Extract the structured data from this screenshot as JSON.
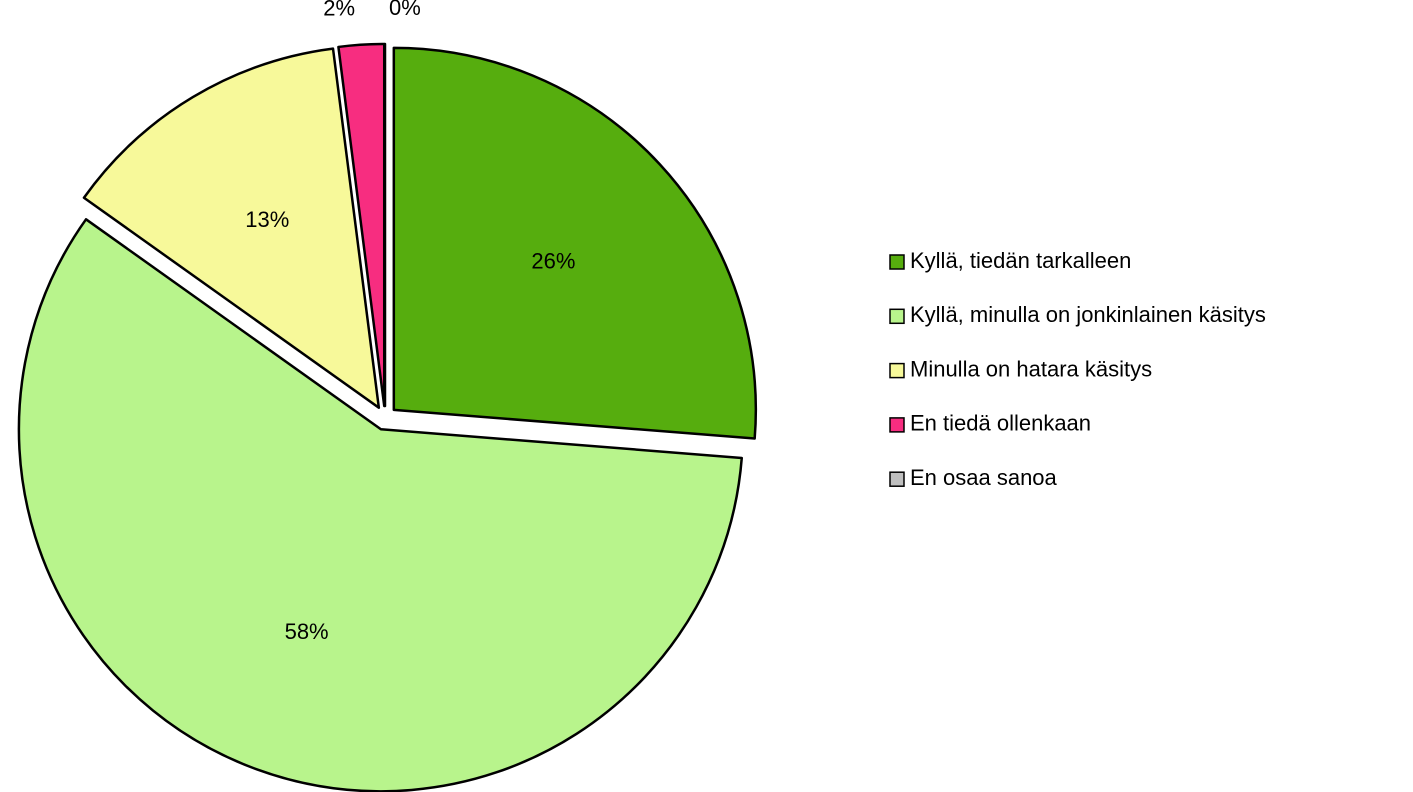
{
  "chart_data": {
    "type": "pie",
    "categories": [
      "Kyllä, tiedän tarkalleen",
      "Kyllä, minulla on jonkinlainen käsitys",
      "Minulla on hatara käsitys",
      "En tiedä ollenkaan",
      "En osaa sanoa"
    ],
    "values": [
      26,
      58,
      13,
      2,
      0
    ],
    "value_labels": [
      "26%",
      "58%",
      "13%",
      "2%",
      "0%"
    ],
    "colors": [
      "#56ad0e",
      "#b8f48c",
      "#f7f99a",
      "#f72d80",
      "#bfbfbf"
    ],
    "legend": "right"
  }
}
